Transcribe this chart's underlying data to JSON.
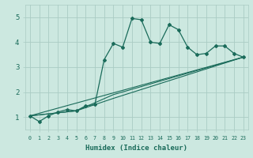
{
  "xlabel": "Humidex (Indice chaleur)",
  "bg_color": "#cce8e0",
  "grid_color": "#aaccc4",
  "line_color": "#1a6b5a",
  "xlim": [
    -0.5,
    23.5
  ],
  "ylim": [
    0.5,
    5.5
  ],
  "yticks": [
    1,
    2,
    3,
    4,
    5
  ],
  "xticks": [
    0,
    1,
    2,
    3,
    4,
    5,
    6,
    7,
    8,
    9,
    10,
    11,
    12,
    13,
    14,
    15,
    16,
    17,
    18,
    19,
    20,
    21,
    22,
    23
  ],
  "main_x": [
    0,
    1,
    2,
    3,
    4,
    5,
    6,
    7,
    8,
    9,
    10,
    11,
    12,
    13,
    14,
    15,
    16,
    17,
    18,
    19,
    20,
    21,
    22,
    23
  ],
  "main_y": [
    1.05,
    0.82,
    1.05,
    1.2,
    1.3,
    1.25,
    1.45,
    1.5,
    3.3,
    3.95,
    3.8,
    4.95,
    4.9,
    4.0,
    3.95,
    4.7,
    4.5,
    3.8,
    3.5,
    3.55,
    3.85,
    3.85,
    3.55,
    3.4
  ],
  "line2_x": [
    0,
    5,
    9,
    23
  ],
  "line2_y": [
    1.05,
    1.25,
    1.9,
    3.4
  ],
  "line3_x": [
    0,
    5,
    9,
    23
  ],
  "line3_y": [
    1.05,
    1.25,
    1.75,
    3.4
  ],
  "line4_x": [
    0,
    23
  ],
  "line4_y": [
    1.05,
    3.4
  ],
  "xlabel_fontsize": 6.5,
  "xtick_fontsize": 4.8,
  "ytick_fontsize": 6.5
}
